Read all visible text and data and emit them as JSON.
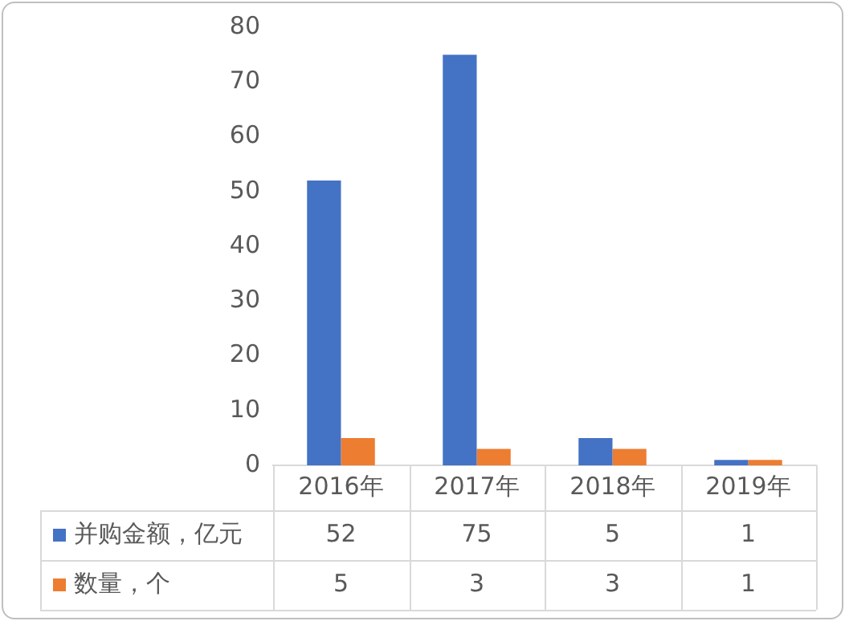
{
  "chart_data": {
    "type": "bar",
    "categories": [
      "2016年",
      "2017年",
      "2018年",
      "2019年"
    ],
    "series": [
      {
        "name": "并购金额，亿元",
        "color": "#4472c4",
        "values": [
          52,
          75,
          5,
          1
        ]
      },
      {
        "name": "数量，个",
        "color": "#ed7d31",
        "values": [
          5,
          3,
          3,
          1
        ]
      }
    ],
    "ylim": [
      0,
      80
    ],
    "yticks": [
      0,
      10,
      20,
      30,
      40,
      50,
      60,
      70,
      80
    ],
    "grid": false,
    "legend": "bottom",
    "data_labels": true
  }
}
